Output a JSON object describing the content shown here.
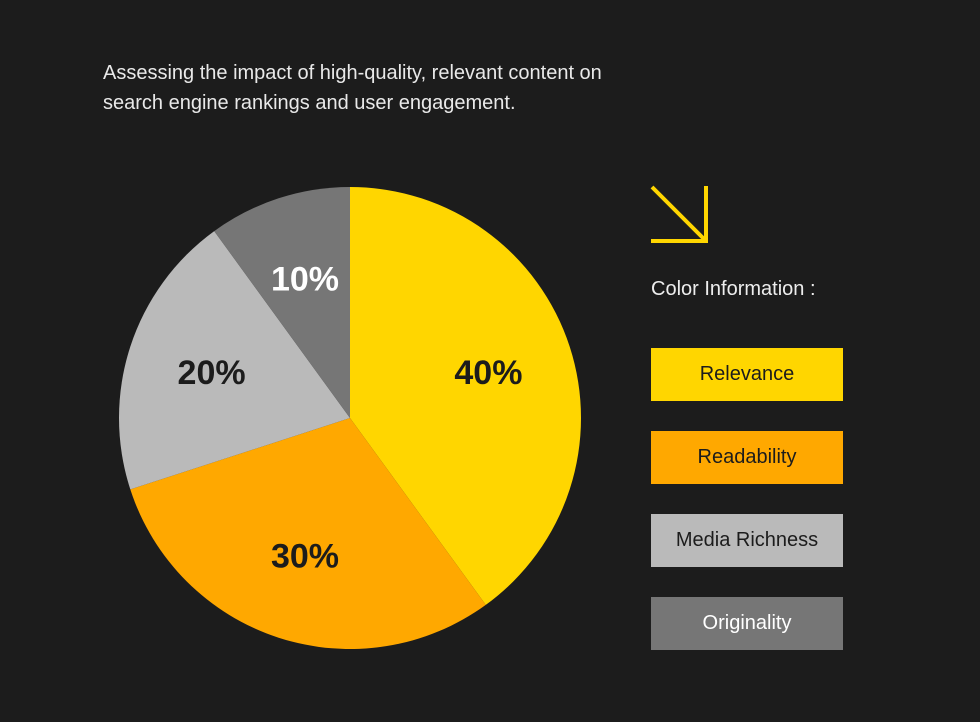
{
  "subtitle": "Assessing the impact of high-quality, relevant content on search engine rankings and user engagement.",
  "legend_title": "Color Information :",
  "chart_data": {
    "type": "pie",
    "title": "",
    "unit": "%",
    "slices": [
      {
        "label": "Relevance",
        "value": 40,
        "display": "40%",
        "color": "#ffd600",
        "text_color": "#1c1c1c"
      },
      {
        "label": "Readability",
        "value": 30,
        "display": "30%",
        "color": "#ffa800",
        "text_color": "#1c1c1c"
      },
      {
        "label": "Media Richness",
        "value": 20,
        "display": "20%",
        "color": "#bababa",
        "text_color": "#1c1c1c"
      },
      {
        "label": "Originality",
        "value": 10,
        "display": "10%",
        "color": "#767676",
        "text_color": "#ffffff"
      }
    ],
    "start_angle": "top",
    "direction": "clockwise",
    "legend_placement": "right"
  },
  "accent_color": "#ffd600",
  "icon": "arrow-down-right-icon"
}
